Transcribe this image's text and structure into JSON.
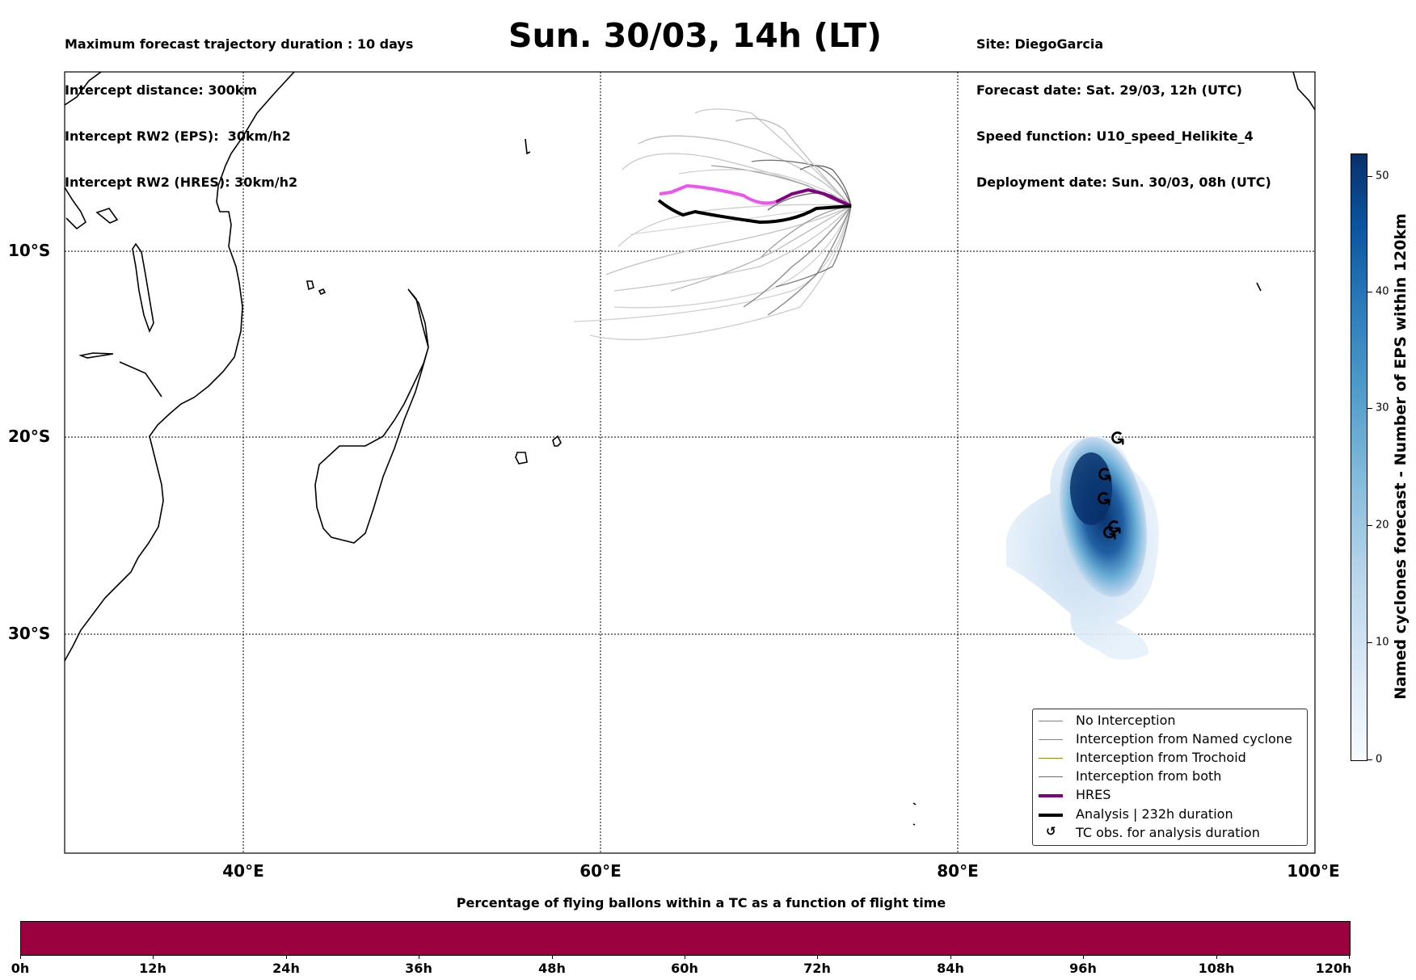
{
  "header": {
    "left_lines": [
      "Maximum forecast trajectory duration : 10 days",
      "Intercept distance: 300km",
      "Intercept RW2 (EPS):  30km/h2",
      "Intercept RW2 (HRES): 30km/h2"
    ],
    "title": "Sun. 30/03, 14h (LT)",
    "right_lines": [
      "Site: DiegoGarcia",
      "Forecast date: Sat. 29/03, 12h (UTC)",
      "Speed function: U10_speed_Helikite_4",
      "Deployment date: Sun. 30/03, 08h (UTC)"
    ]
  },
  "map": {
    "lon_labels": [
      "40°E",
      "60°E",
      "80°E",
      "100°E"
    ],
    "lat_labels": [
      "10°S",
      "20°S",
      "30°S"
    ]
  },
  "legend": {
    "items": [
      {
        "label": "No Interception",
        "color": "#808080"
      },
      {
        "label": "Interception from Named cyclone",
        "color": "#ff5a2a"
      },
      {
        "label": "Interception from Trochoid",
        "color": "#8c8c1a"
      },
      {
        "label": "Interception from both",
        "color": "#2a9a2a"
      },
      {
        "label": "HRES",
        "color": "#800080"
      },
      {
        "label": "Analysis | 232h duration",
        "color": "#000000"
      },
      {
        "label": "TC obs. for analysis duration",
        "icon": "cyclone-icon"
      }
    ]
  },
  "colorbar": {
    "title": "Named cyclones forecast - Number of EPS within 120km",
    "ticks": [
      "0",
      "10",
      "20",
      "30",
      "40",
      "50"
    ],
    "colormap": "Blues"
  },
  "bottom": {
    "title": "Percentage of flying ballons within a TC as a function of flight time",
    "ticks": [
      "0h",
      "12h",
      "24h",
      "36h",
      "48h",
      "60h",
      "72h",
      "84h",
      "96h",
      "108h",
      "120h"
    ],
    "bar_color": "#9b003f"
  },
  "symbols": {
    "cyclone": "↺"
  }
}
